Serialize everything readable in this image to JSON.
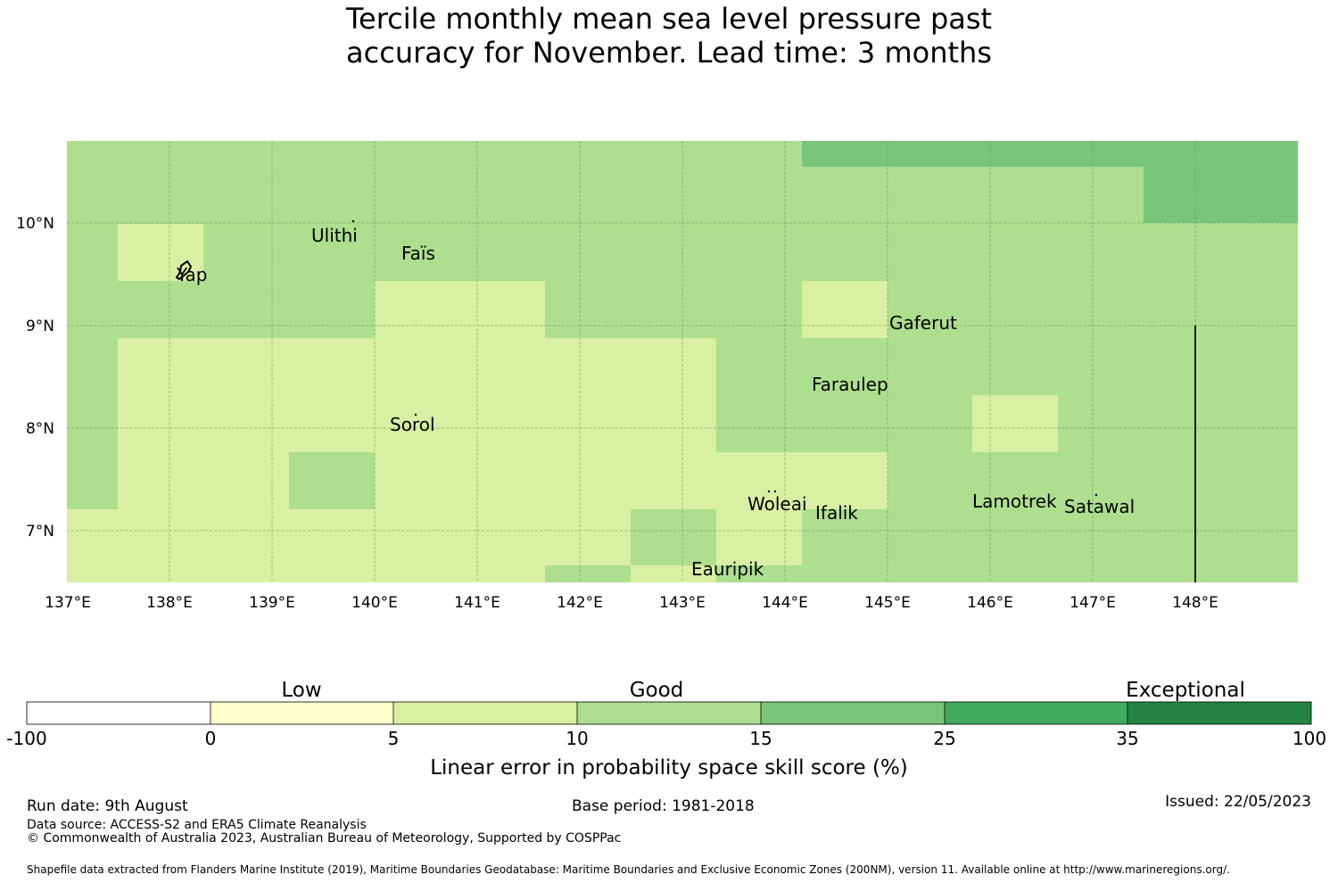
{
  "title": {
    "line1": "Tercile monthly mean sea level pressure past",
    "line2": "accuracy for November. Lead time: 3 months"
  },
  "map": {
    "x_ticks": [
      "137°E",
      "138°E",
      "139°E",
      "140°E",
      "141°E",
      "142°E",
      "143°E",
      "144°E",
      "145°E",
      "146°E",
      "147°E",
      "148°E"
    ],
    "y_ticks": [
      "10°N",
      "9°N",
      "8°N",
      "7°N"
    ],
    "places": [
      {
        "id": "ulithi",
        "name": "Ulithi"
      },
      {
        "id": "fais",
        "name": "Faïs"
      },
      {
        "id": "yap",
        "name": "Yap"
      },
      {
        "id": "gaferut",
        "name": "Gaferut"
      },
      {
        "id": "faraulep",
        "name": "Faraulep"
      },
      {
        "id": "sorol",
        "name": "Sorol"
      },
      {
        "id": "woleai",
        "name": "Woleai"
      },
      {
        "id": "ifalik",
        "name": "Ifalik"
      },
      {
        "id": "lamotrek",
        "name": "Lamotrek"
      },
      {
        "id": "satawal",
        "name": "Satawal"
      },
      {
        "id": "eauripik",
        "name": "Eauripik"
      }
    ],
    "colors": {
      "low": "#d9efa3",
      "good": "#addf8e",
      "good_high": "#78c679"
    }
  },
  "colorbar": {
    "categories": [
      "Low",
      "Good",
      "Exceptional"
    ],
    "ticks": [
      "-100",
      "0",
      "5",
      "10",
      "15",
      "25",
      "35",
      "100"
    ],
    "colors": [
      "#ffffff",
      "#ffffcc",
      "#d9f0a3",
      "#addd8e",
      "#78c679",
      "#41ab5d",
      "#238443"
    ],
    "label": "Linear error in probability space skill score (%)"
  },
  "footer": {
    "run_date": "Run date: 9th August",
    "base_period": "Base period: 1981-2018",
    "issued": "Issued: 22/05/2023",
    "data_source": "Data source: ACCESS-S2 and ERA5 Climate Reanalysis",
    "copyright": "© Commonwealth of Australia 2023, Australian Bureau of Meteorology, Supported by COSPPac",
    "shapefile": "Shapefile data extracted from Flanders Marine Institute (2019), Maritime Boundaries Geodatabase: Maritime Boundaries and Exclusive Economic Zones (200NM), version 11. Available online at http://www.marineregions.org/."
  }
}
